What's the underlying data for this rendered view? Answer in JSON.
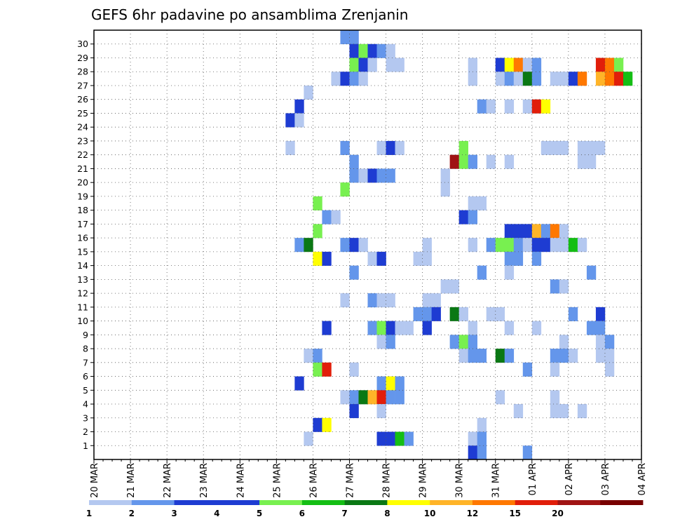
{
  "chart_data": {
    "type": "heatmap",
    "title": "GEFS 6hr padavine po ansamblima Zrenjanin",
    "xlabel": "",
    "ylabel": "",
    "x_ticks": [
      "20 MAR",
      "21 MAR",
      "22 MAR",
      "23 MAR",
      "24 MAR",
      "25 MAR",
      "26 MAR",
      "27 MAR",
      "28 MAR",
      "29 MAR",
      "30 MAR",
      "31 MAR",
      "01 APR",
      "02 APR",
      "03 APR",
      "04 APR"
    ],
    "x_step_hours": 6,
    "x_steps": 60,
    "y_ticks": [
      1,
      2,
      3,
      4,
      5,
      6,
      7,
      8,
      9,
      10,
      11,
      12,
      13,
      14,
      15,
      16,
      17,
      18,
      19,
      20,
      21,
      22,
      23,
      24,
      25,
      26,
      27,
      28,
      29,
      30
    ],
    "ylim": [
      0,
      30
    ],
    "grid": true,
    "colorbar": {
      "levels": [
        "1",
        "2",
        "3",
        "4",
        "5",
        "6",
        "7",
        "8",
        "10",
        "12",
        "15",
        "20"
      ],
      "colors": [
        "#b4c8f0",
        "#6496eb",
        "#1e3cd2",
        "#1e3cd2",
        "#78f050",
        "#14be14",
        "#0a7814",
        "#ffff00",
        "#ffb428",
        "#ff7800",
        "#e11e0a",
        "#a01414",
        "#780000"
      ]
    },
    "cells_note": "each cell = [x_step_index, member, color_index]; x_step_index 0 = 20 MAR 00z, 4 steps per day",
    "cells": [
      [
        27,
        30,
        1
      ],
      [
        28,
        30,
        1
      ],
      [
        28,
        29,
        3
      ],
      [
        29,
        29,
        4
      ],
      [
        30,
        29,
        2
      ],
      [
        31,
        29,
        1
      ],
      [
        32,
        29,
        0
      ],
      [
        28,
        28,
        4
      ],
      [
        29,
        28,
        2
      ],
      [
        30,
        28,
        0
      ],
      [
        32,
        28,
        0
      ],
      [
        33,
        28,
        0
      ],
      [
        41,
        28,
        0
      ],
      [
        44,
        28,
        3
      ],
      [
        45,
        28,
        7
      ],
      [
        46,
        28,
        9
      ],
      [
        47,
        28,
        0
      ],
      [
        48,
        28,
        1
      ],
      [
        55,
        28,
        10
      ],
      [
        56,
        28,
        9
      ],
      [
        57,
        28,
        4
      ],
      [
        26,
        27,
        0
      ],
      [
        27,
        27,
        3
      ],
      [
        28,
        27,
        1
      ],
      [
        29,
        27,
        0
      ],
      [
        41,
        27,
        0
      ],
      [
        44,
        27,
        0
      ],
      [
        45,
        27,
        1
      ],
      [
        46,
        27,
        0
      ],
      [
        47,
        27,
        6
      ],
      [
        48,
        27,
        1
      ],
      [
        50,
        27,
        0
      ],
      [
        51,
        27,
        0
      ],
      [
        52,
        27,
        3
      ],
      [
        53,
        27,
        9
      ],
      [
        55,
        27,
        8
      ],
      [
        56,
        27,
        9
      ],
      [
        57,
        27,
        10
      ],
      [
        58,
        27,
        5
      ],
      [
        23,
        26,
        0
      ],
      [
        22,
        25,
        3
      ],
      [
        42,
        25,
        1
      ],
      [
        43,
        25,
        0
      ],
      [
        45,
        25,
        0
      ],
      [
        47,
        25,
        0
      ],
      [
        48,
        25,
        10
      ],
      [
        49,
        25,
        7
      ],
      [
        21,
        24,
        2
      ],
      [
        22,
        24,
        0
      ],
      [
        21,
        22,
        0
      ],
      [
        27,
        22,
        1
      ],
      [
        31,
        22,
        0
      ],
      [
        32,
        22,
        2
      ],
      [
        33,
        22,
        0
      ],
      [
        40,
        22,
        4
      ],
      [
        49,
        22,
        0
      ],
      [
        50,
        22,
        0
      ],
      [
        51,
        22,
        0
      ],
      [
        53,
        22,
        0
      ],
      [
        54,
        22,
        0
      ],
      [
        55,
        22,
        0
      ],
      [
        28,
        21,
        1
      ],
      [
        39,
        21,
        11
      ],
      [
        40,
        21,
        4
      ],
      [
        41,
        21,
        1
      ],
      [
        43,
        21,
        0
      ],
      [
        45,
        21,
        0
      ],
      [
        53,
        21,
        0
      ],
      [
        54,
        21,
        0
      ],
      [
        28,
        20,
        1
      ],
      [
        29,
        20,
        0
      ],
      [
        30,
        20,
        2
      ],
      [
        31,
        20,
        1
      ],
      [
        32,
        20,
        1
      ],
      [
        38,
        20,
        0
      ],
      [
        27,
        19,
        4
      ],
      [
        38,
        19,
        0
      ],
      [
        24,
        18,
        4
      ],
      [
        41,
        18,
        0
      ],
      [
        42,
        18,
        0
      ],
      [
        25,
        17,
        1
      ],
      [
        26,
        17,
        0
      ],
      [
        40,
        17,
        2
      ],
      [
        41,
        17,
        1
      ],
      [
        24,
        16,
        4
      ],
      [
        45,
        16,
        2
      ],
      [
        46,
        16,
        3
      ],
      [
        47,
        16,
        2
      ],
      [
        48,
        16,
        8
      ],
      [
        49,
        16,
        1
      ],
      [
        50,
        16,
        9
      ],
      [
        51,
        16,
        0
      ],
      [
        27,
        15,
        1
      ],
      [
        28,
        15,
        2
      ],
      [
        29,
        15,
        0
      ],
      [
        36,
        15,
        0
      ],
      [
        41,
        15,
        0
      ],
      [
        43,
        15,
        1
      ],
      [
        44,
        15,
        4
      ],
      [
        45,
        15,
        4
      ],
      [
        46,
        15,
        1
      ],
      [
        47,
        15,
        0
      ],
      [
        48,
        15,
        2
      ],
      [
        49,
        15,
        3
      ],
      [
        50,
        15,
        0
      ],
      [
        51,
        15,
        0
      ],
      [
        52,
        15,
        5
      ],
      [
        53,
        15,
        0
      ],
      [
        22,
        15,
        1
      ],
      [
        23,
        15,
        6
      ],
      [
        24,
        14,
        7
      ],
      [
        25,
        14,
        2
      ],
      [
        30,
        14,
        0
      ],
      [
        31,
        14,
        2
      ],
      [
        35,
        14,
        0
      ],
      [
        36,
        14,
        0
      ],
      [
        45,
        14,
        1
      ],
      [
        46,
        14,
        1
      ],
      [
        48,
        14,
        1
      ],
      [
        28,
        13,
        1
      ],
      [
        42,
        13,
        1
      ],
      [
        45,
        13,
        0
      ],
      [
        54,
        13,
        1
      ],
      [
        38,
        12,
        0
      ],
      [
        39,
        12,
        0
      ],
      [
        50,
        12,
        1
      ],
      [
        51,
        12,
        0
      ],
      [
        27,
        11,
        0
      ],
      [
        30,
        11,
        1
      ],
      [
        31,
        11,
        0
      ],
      [
        32,
        11,
        0
      ],
      [
        36,
        11,
        0
      ],
      [
        37,
        11,
        0
      ],
      [
        35,
        10,
        1
      ],
      [
        36,
        10,
        1
      ],
      [
        37,
        10,
        2
      ],
      [
        39,
        10,
        6
      ],
      [
        40,
        10,
        0
      ],
      [
        43,
        10,
        0
      ],
      [
        44,
        10,
        0
      ],
      [
        52,
        10,
        1
      ],
      [
        55,
        10,
        2
      ],
      [
        25,
        9,
        2
      ],
      [
        30,
        9,
        1
      ],
      [
        31,
        9,
        4
      ],
      [
        32,
        9,
        2
      ],
      [
        33,
        9,
        0
      ],
      [
        34,
        9,
        0
      ],
      [
        36,
        9,
        2
      ],
      [
        41,
        9,
        0
      ],
      [
        45,
        9,
        0
      ],
      [
        48,
        9,
        0
      ],
      [
        54,
        9,
        1
      ],
      [
        55,
        9,
        1
      ],
      [
        31,
        8,
        0
      ],
      [
        32,
        8,
        1
      ],
      [
        39,
        8,
        1
      ],
      [
        40,
        8,
        4
      ],
      [
        41,
        8,
        1
      ],
      [
        51,
        8,
        0
      ],
      [
        55,
        8,
        0
      ],
      [
        56,
        8,
        1
      ],
      [
        23,
        7,
        0
      ],
      [
        24,
        7,
        1
      ],
      [
        40,
        7,
        0
      ],
      [
        41,
        7,
        1
      ],
      [
        42,
        7,
        1
      ],
      [
        44,
        7,
        6
      ],
      [
        45,
        7,
        1
      ],
      [
        50,
        7,
        1
      ],
      [
        51,
        7,
        1
      ],
      [
        52,
        7,
        0
      ],
      [
        55,
        7,
        0
      ],
      [
        56,
        7,
        0
      ],
      [
        24,
        6,
        4
      ],
      [
        25,
        6,
        10
      ],
      [
        28,
        6,
        0
      ],
      [
        47,
        6,
        1
      ],
      [
        50,
        6,
        0
      ],
      [
        56,
        6,
        0
      ],
      [
        22,
        5,
        3
      ],
      [
        31,
        5,
        1
      ],
      [
        32,
        5,
        7
      ],
      [
        33,
        5,
        1
      ],
      [
        27,
        4,
        0
      ],
      [
        28,
        4,
        1
      ],
      [
        29,
        4,
        6
      ],
      [
        30,
        4,
        8
      ],
      [
        31,
        4,
        10
      ],
      [
        32,
        4,
        1
      ],
      [
        33,
        4,
        1
      ],
      [
        44,
        4,
        0
      ],
      [
        50,
        4,
        0
      ],
      [
        28,
        3,
        3
      ],
      [
        31,
        3,
        0
      ],
      [
        46,
        3,
        0
      ],
      [
        50,
        3,
        0
      ],
      [
        51,
        3,
        0
      ],
      [
        53,
        3,
        0
      ],
      [
        24,
        2,
        3
      ],
      [
        25,
        2,
        7
      ],
      [
        42,
        2,
        0
      ],
      [
        23,
        1,
        0
      ],
      [
        31,
        1,
        3
      ],
      [
        32,
        1,
        3
      ],
      [
        33,
        1,
        5
      ],
      [
        34,
        1,
        1
      ],
      [
        41,
        1,
        0
      ],
      [
        42,
        1,
        1
      ],
      [
        41,
        0,
        3
      ],
      [
        42,
        0,
        1
      ],
      [
        47,
        0,
        1
      ]
    ]
  }
}
